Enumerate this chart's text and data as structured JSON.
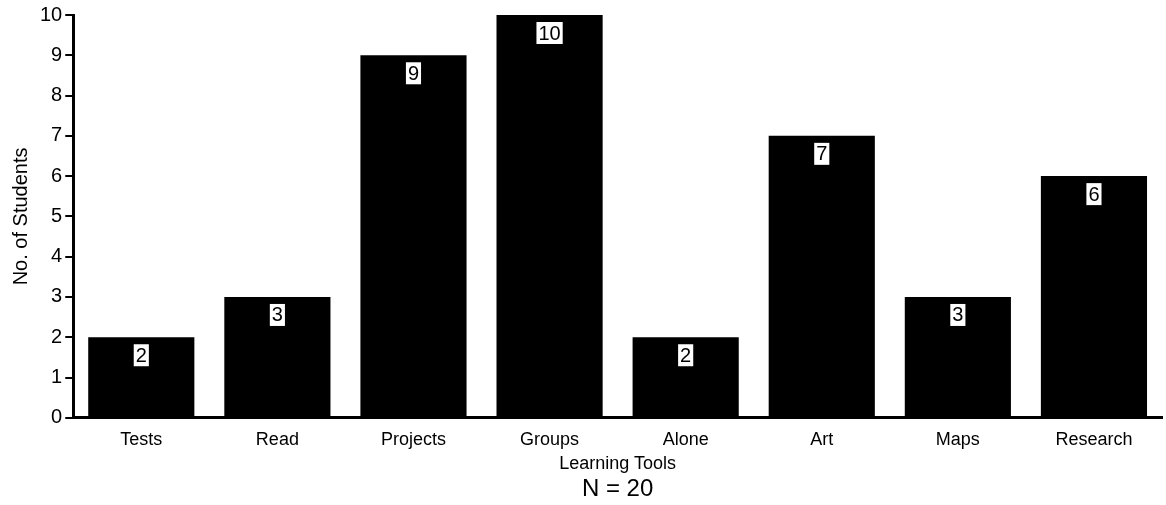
{
  "chart_data": {
    "type": "bar",
    "xlabel": "Learning Tools",
    "ylabel": "No. of Students",
    "categories": [
      "Tests",
      "Read",
      "Projects",
      "Groups",
      "Alone",
      "Art",
      "Maps",
      "Research"
    ],
    "values": [
      2,
      3,
      9,
      10,
      2,
      7,
      3,
      6
    ],
    "color": "#000000",
    "ylim": [
      0,
      10
    ],
    "yticks": [
      0,
      1,
      2,
      3,
      4,
      5,
      6,
      7,
      8,
      9,
      10
    ],
    "grid": false,
    "legend": false,
    "data_labels": true,
    "annotations": [
      "N = 20"
    ]
  }
}
